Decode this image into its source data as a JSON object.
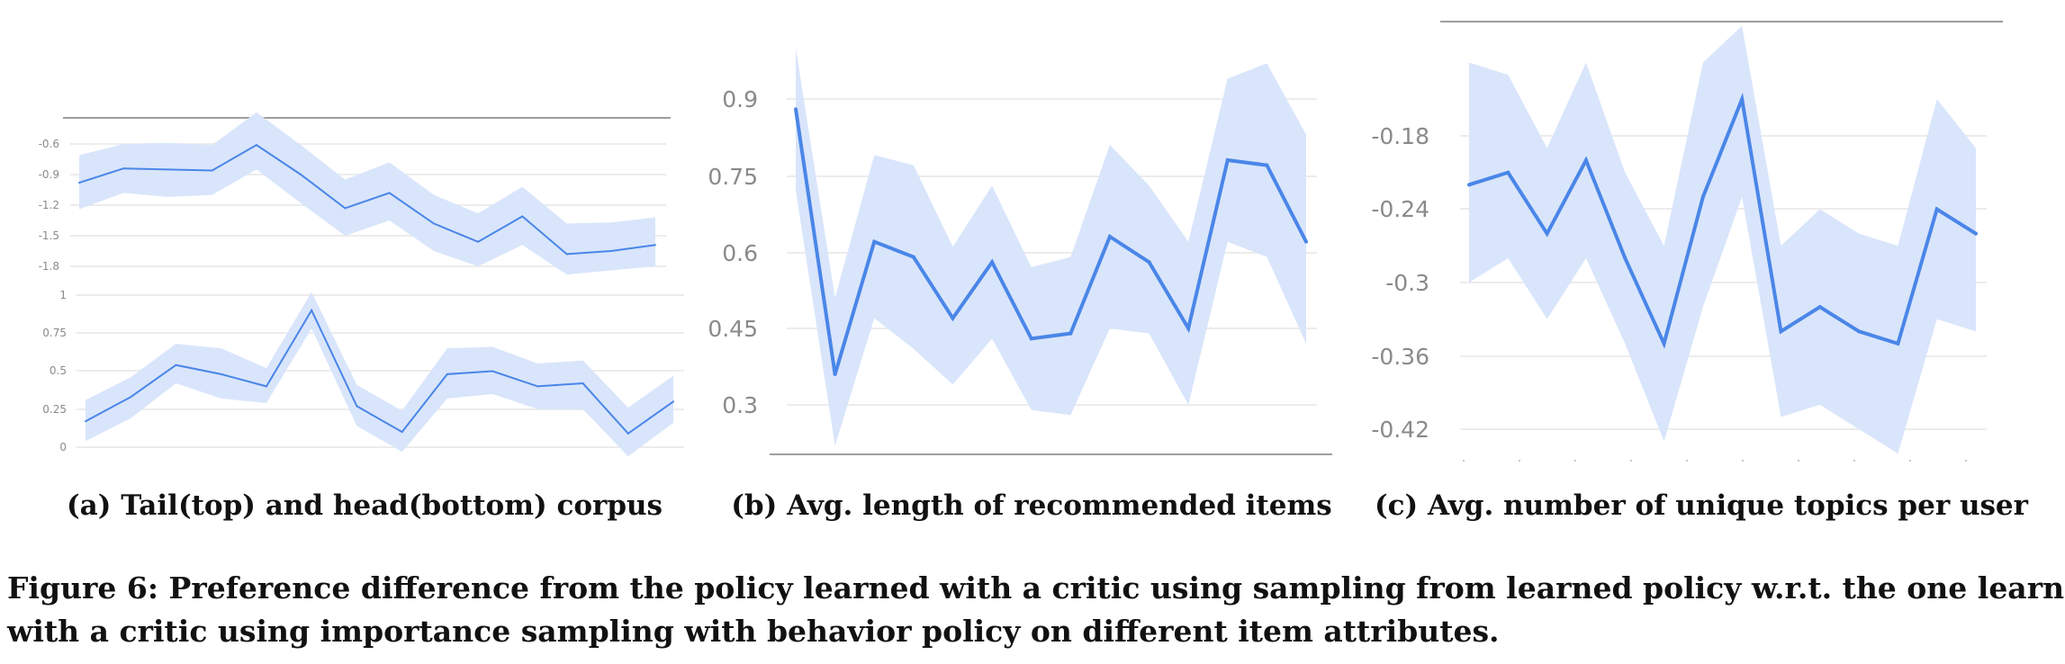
{
  "colors": {
    "line": "#4a86e8",
    "band": "#d9e5fb",
    "grid": "#e6e6e6",
    "axis": "#9e9e9e",
    "tick": "#8a8a8a"
  },
  "caption": {
    "line1": "Figure 6: Preference difference from the policy learned with a critic using sampling from learned policy w.r.t. the one learned",
    "line2": "with a critic using importance sampling with behavior policy on different item attributes."
  },
  "panels": [
    {
      "caption": "(a) Tail(top) and head(bottom) corpus"
    },
    {
      "caption": "(b) Avg. length of recommended items"
    },
    {
      "caption": "(c) Avg. number of unique topics per user"
    }
  ],
  "chart_data": [
    {
      "type": "line",
      "panel": "a-top",
      "ticks": [
        "-0.6",
        "-0.9",
        "-1.2",
        "-1.5",
        "-1.8"
      ],
      "ylim": [
        -1.9,
        -0.3
      ],
      "x": [
        0,
        1,
        2,
        3,
        4,
        5,
        6,
        7,
        8,
        9,
        10,
        11,
        12,
        13
      ],
      "series": [
        {
          "values": [
            -0.98,
            -0.84,
            -0.85,
            -0.86,
            -0.61,
            -0.9,
            -1.23,
            -1.08,
            -1.38,
            -1.56,
            -1.31,
            -1.68,
            -1.65,
            -1.59
          ]
        }
      ],
      "band_upper": [
        -0.71,
        -0.6,
        -0.59,
        -0.61,
        -0.29,
        -0.61,
        -0.95,
        -0.78,
        -1.1,
        -1.28,
        -1.02,
        -1.38,
        -1.37,
        -1.32
      ],
      "band_lower": [
        -1.24,
        -1.08,
        -1.12,
        -1.1,
        -0.85,
        -1.18,
        -1.5,
        -1.35,
        -1.65,
        -1.8,
        -1.59,
        -1.88,
        -1.84,
        -1.8
      ]
    },
    {
      "type": "line",
      "panel": "a-bottom",
      "ticks": [
        "1",
        "0.75",
        "0.5",
        "0.25",
        "0"
      ],
      "ylim": [
        0,
        1
      ],
      "x": [
        0,
        1,
        2,
        3,
        4,
        5,
        6,
        7,
        8,
        9,
        10,
        11,
        12,
        13
      ],
      "series": [
        {
          "values": [
            0.17,
            0.33,
            0.54,
            0.48,
            0.4,
            0.9,
            0.27,
            0.1,
            0.48,
            0.5,
            0.4,
            0.42,
            0.09,
            0.3
          ]
        }
      ],
      "band_upper": [
        0.31,
        0.46,
        0.68,
        0.65,
        0.52,
        1.02,
        0.41,
        0.24,
        0.65,
        0.66,
        0.55,
        0.57,
        0.26,
        0.47
      ],
      "band_lower": [
        0.04,
        0.19,
        0.42,
        0.32,
        0.29,
        0.78,
        0.14,
        -0.03,
        0.32,
        0.35,
        0.25,
        0.25,
        -0.06,
        0.16
      ]
    },
    {
      "type": "line",
      "panel": "b",
      "ticks": [
        "0.9",
        "0.75",
        "0.6",
        "0.45",
        "0.3"
      ],
      "ylim": [
        0.22,
        1.0
      ],
      "x": [
        0,
        1,
        2,
        3,
        4,
        5,
        6,
        7,
        8,
        9,
        10,
        11,
        12,
        13
      ],
      "series": [
        {
          "values": [
            0.88,
            0.36,
            0.62,
            0.59,
            0.47,
            0.58,
            0.43,
            0.44,
            0.63,
            0.58,
            0.45,
            0.78,
            0.77,
            0.62
          ]
        }
      ],
      "band_upper": [
        1.0,
        0.51,
        0.79,
        0.77,
        0.61,
        0.73,
        0.57,
        0.59,
        0.81,
        0.73,
        0.62,
        0.94,
        0.97,
        0.83
      ],
      "band_lower": [
        0.72,
        0.22,
        0.47,
        0.41,
        0.34,
        0.43,
        0.29,
        0.28,
        0.45,
        0.44,
        0.3,
        0.62,
        0.59,
        0.42
      ]
    },
    {
      "type": "line",
      "panel": "c",
      "ticks": [
        "-0.18",
        "-0.24",
        "-0.3",
        "-0.36",
        "-0.42"
      ],
      "ylim": [
        -0.45,
        -0.09
      ],
      "x": [
        0,
        1,
        2,
        3,
        4,
        5,
        6,
        7,
        8,
        9,
        10,
        11,
        12,
        13
      ],
      "series": [
        {
          "values": [
            -0.22,
            -0.21,
            -0.26,
            -0.2,
            -0.28,
            -0.35,
            -0.23,
            -0.15,
            -0.34,
            -0.32,
            -0.34,
            -0.35,
            -0.24,
            -0.26
          ]
        }
      ],
      "band_upper": [
        -0.12,
        -0.13,
        -0.19,
        -0.12,
        -0.21,
        -0.27,
        -0.12,
        -0.09,
        -0.27,
        -0.24,
        -0.26,
        -0.27,
        -0.15,
        -0.19
      ],
      "band_lower": [
        -0.3,
        -0.28,
        -0.33,
        -0.28,
        -0.35,
        -0.43,
        -0.32,
        -0.23,
        -0.41,
        -0.4,
        -0.42,
        -0.44,
        -0.33,
        -0.34
      ]
    }
  ]
}
